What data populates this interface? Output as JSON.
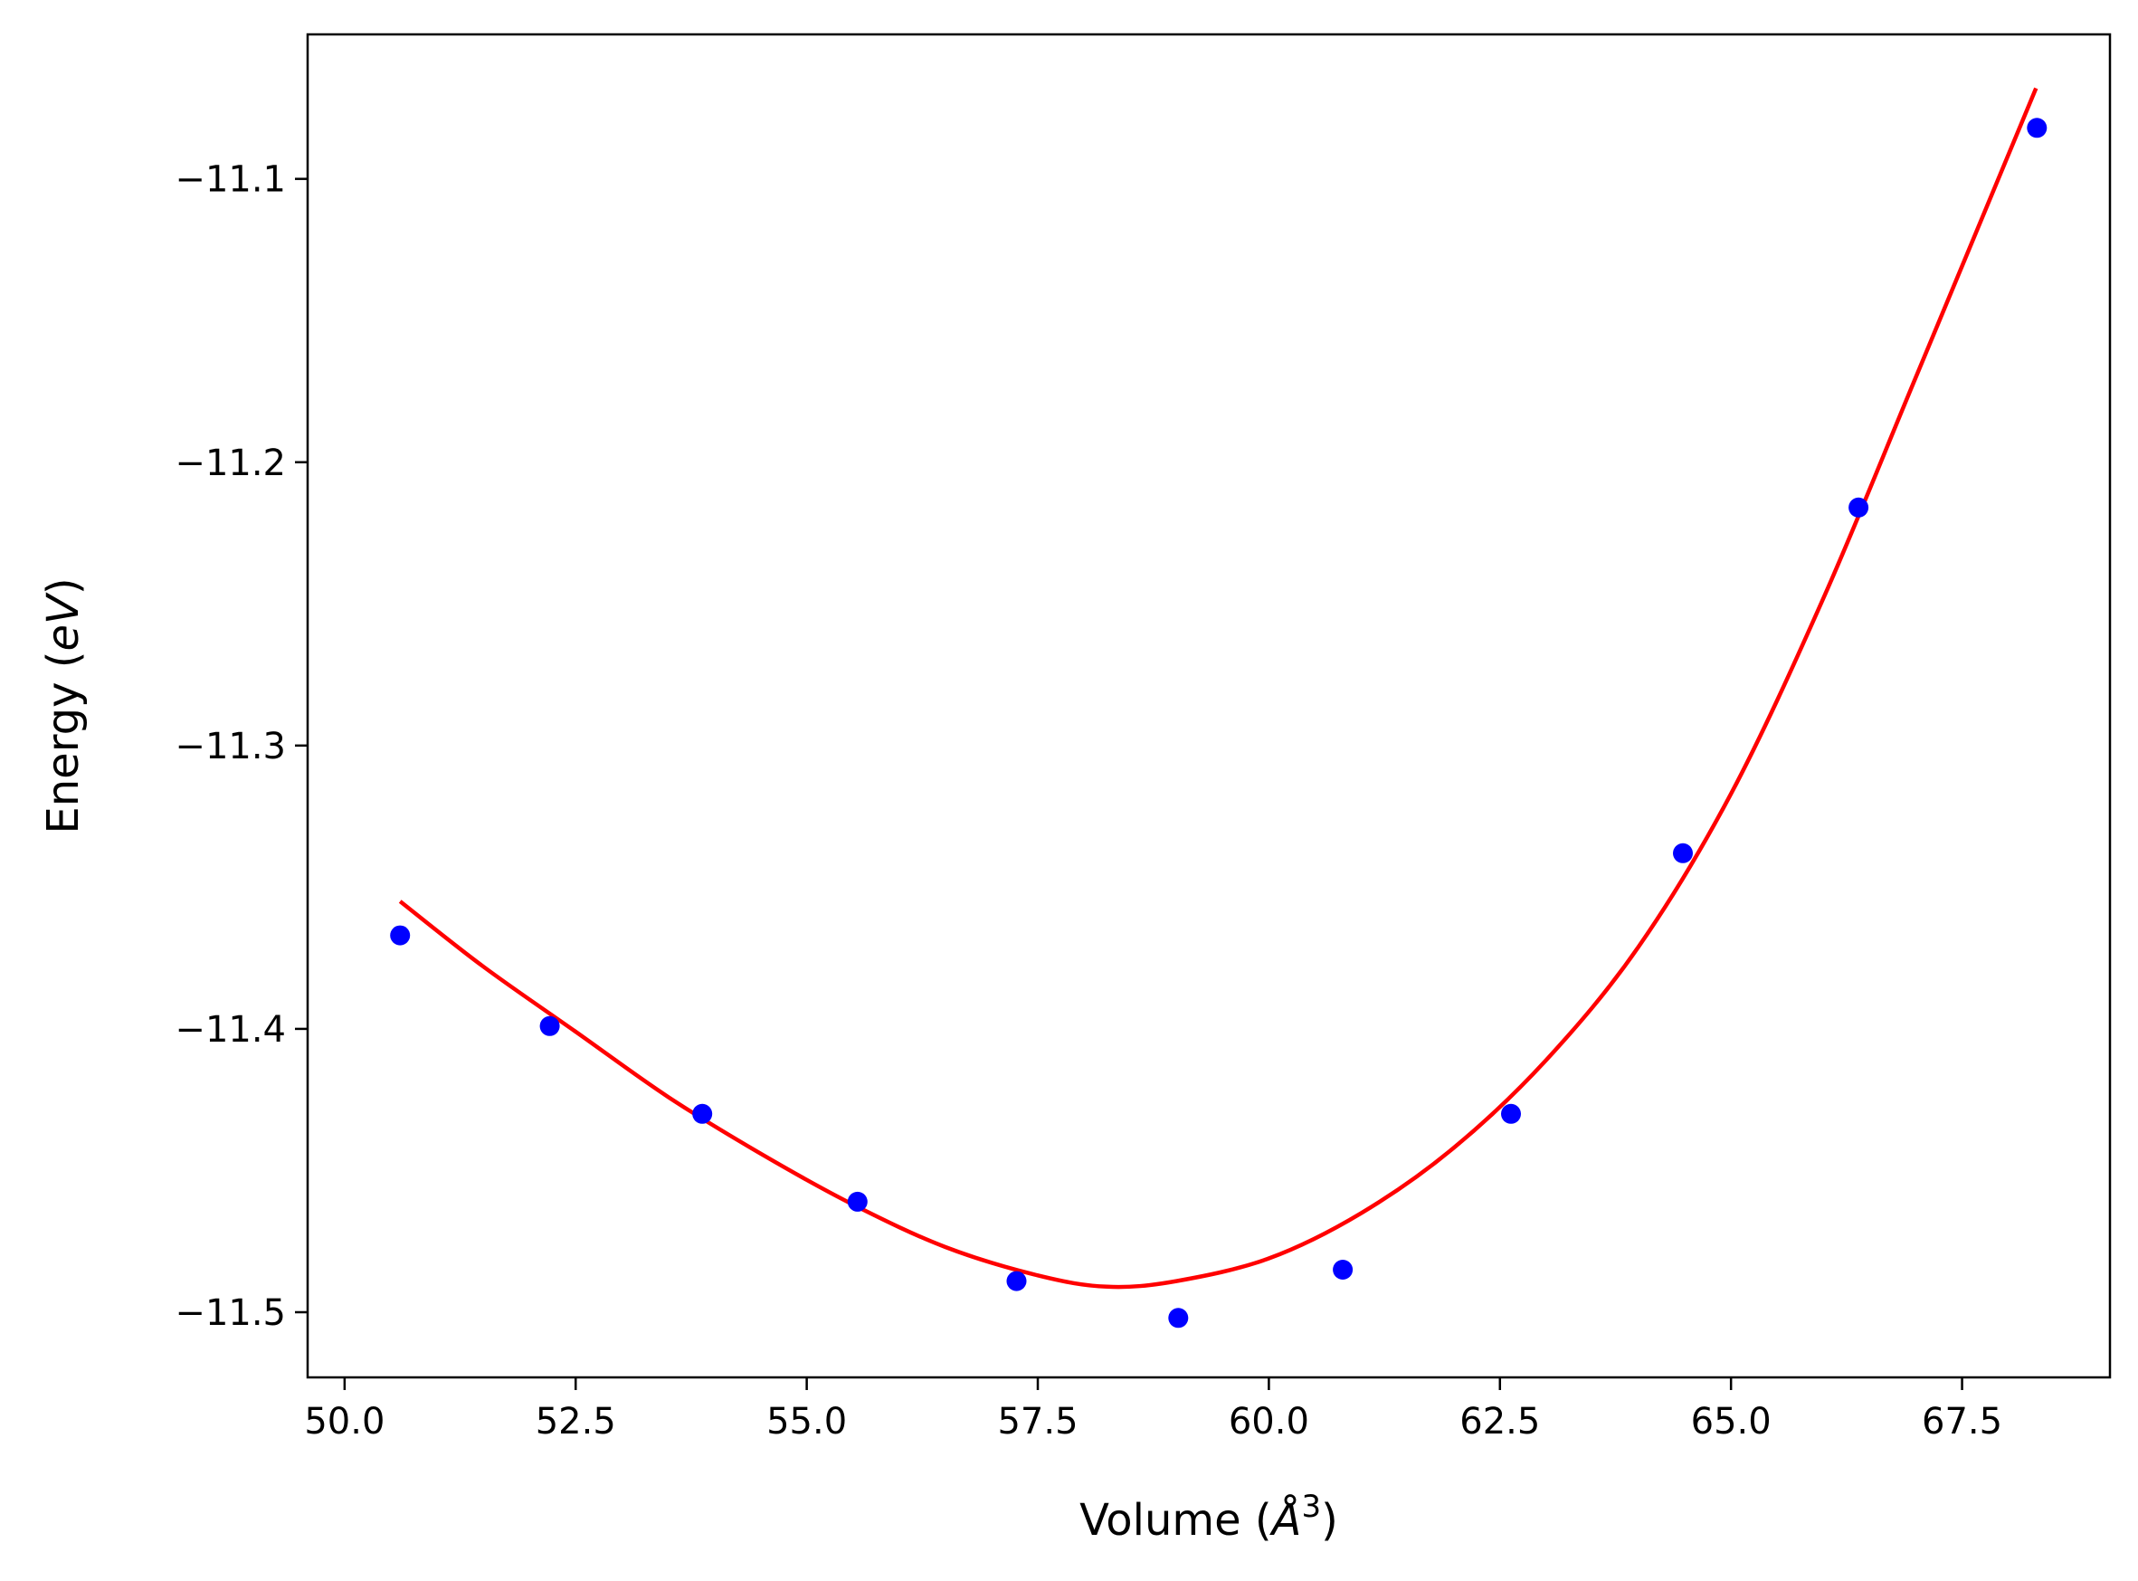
{
  "chart_data": {
    "type": "scatter",
    "title": "",
    "xlabel": {
      "prefix": "Volume (",
      "symbol": "Å",
      "sup": "3",
      "suffix": ")"
    },
    "ylabel": {
      "prefix": "Energy (",
      "unit": "eV",
      "suffix": ")"
    },
    "xlim": [
      49.6,
      69.1
    ],
    "ylim": [
      -11.523,
      -11.049
    ],
    "xticks": [
      50.0,
      52.5,
      55.0,
      57.5,
      60.0,
      62.5,
      65.0,
      67.5
    ],
    "xtick_labels": [
      "50.0",
      "52.5",
      "55.0",
      "57.5",
      "60.0",
      "62.5",
      "65.0",
      "67.5"
    ],
    "yticks": [
      -11.1,
      -11.2,
      -11.3,
      -11.4,
      -11.5
    ],
    "ytick_labels": [
      "−11.1",
      "−11.2",
      "−11.3",
      "−11.4",
      "−11.5"
    ],
    "grid": false,
    "legend": "none",
    "series": [
      {
        "kind": "points",
        "color": "#0000ff",
        "x": [
          50.6,
          52.22,
          53.87,
          55.55,
          57.27,
          59.02,
          60.8,
          62.62,
          64.48,
          66.38,
          68.31
        ],
        "y": [
          -11.367,
          -11.399,
          -11.43,
          -11.461,
          -11.489,
          -11.502,
          -11.485,
          -11.43,
          -11.338,
          -11.216,
          -11.082
        ]
      },
      {
        "kind": "fit-curve",
        "color": "#ff0000",
        "x": [
          50.6,
          51.5,
          52.5,
          53.5,
          54.5,
          55.5,
          56.5,
          57.5,
          58.25,
          59.0,
          60.0,
          61.0,
          62.0,
          63.0,
          64.0,
          65.0,
          66.0,
          67.0,
          68.3
        ],
        "y": [
          -11.355,
          -11.378,
          -11.401,
          -11.424,
          -11.444,
          -11.462,
          -11.477,
          -11.487,
          -11.491,
          -11.489,
          -11.481,
          -11.465,
          -11.442,
          -11.411,
          -11.371,
          -11.317,
          -11.248,
          -11.17,
          -11.068
        ]
      }
    ]
  }
}
